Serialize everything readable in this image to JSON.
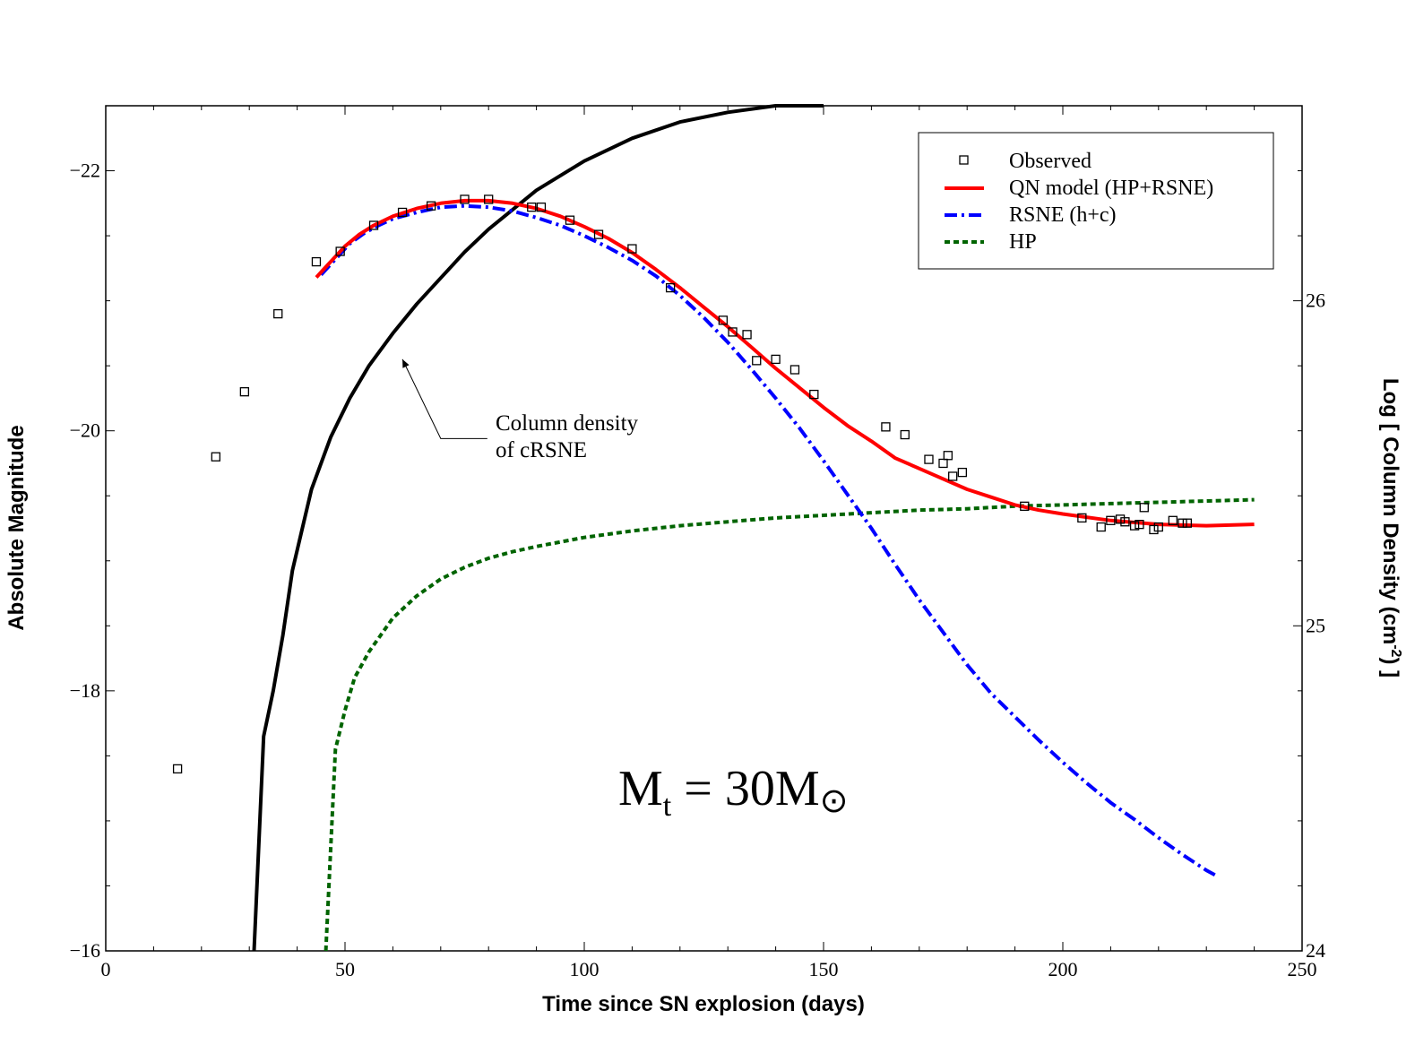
{
  "chart_data": {
    "type": "line",
    "xlabel": "Time since SN explosion (days)",
    "ylabel": "Absolute Magnitude",
    "y2label": "Log [ Column Density (cm",
    "y2label_sup": "-2",
    "y2label_end": ") ]",
    "xlim": [
      0,
      250
    ],
    "ylim": [
      -16,
      -22.5
    ],
    "y2lim": [
      24,
      26.6
    ],
    "x_ticks": [
      0,
      50,
      100,
      150,
      200,
      250
    ],
    "y_ticks": [
      -22,
      -20,
      -18,
      -16
    ],
    "y2_ticks": [
      24,
      25,
      26
    ],
    "y_inverted": true,
    "grid": false,
    "legend_position": "top-right",
    "annotation": {
      "line1": "Column density",
      "line2": "of cRSNE",
      "arrow_to": [
        62,
        -20.55
      ],
      "arrow_from": [
        70,
        -19.94
      ]
    },
    "mass_label": {
      "main": "M",
      "sub": "t",
      "mid": " = 30M",
      "symbol": "⊙"
    },
    "series": [
      {
        "name": "Observed",
        "kind": "scatter",
        "color": "#000000",
        "x": [
          15,
          23,
          29,
          36,
          44,
          49,
          56,
          62,
          68,
          75,
          80,
          89,
          91,
          97,
          103,
          110,
          118,
          129,
          131,
          134,
          136,
          140,
          144,
          148,
          163,
          167,
          172,
          175,
          176,
          177,
          179,
          192,
          204,
          208,
          210,
          212,
          213,
          215,
          216,
          217,
          219,
          220,
          223,
          225,
          226
        ],
        "y": [
          -17.4,
          -19.8,
          -20.3,
          -20.9,
          -21.3,
          -21.38,
          -21.58,
          -21.68,
          -21.73,
          -21.78,
          -21.78,
          -21.72,
          -21.72,
          -21.62,
          -21.51,
          -21.4,
          -21.1,
          -20.85,
          -20.76,
          -20.74,
          -20.54,
          -20.55,
          -20.47,
          -20.28,
          -20.03,
          -19.97,
          -19.78,
          -19.75,
          -19.81,
          -19.65,
          -19.68,
          -19.42,
          -19.33,
          -19.26,
          -19.31,
          -19.32,
          -19.3,
          -19.27,
          -19.28,
          -19.41,
          -19.24,
          -19.26,
          -19.31,
          -19.29,
          -19.29
        ]
      },
      {
        "name": "QN model (HP+RSNE)",
        "kind": "line",
        "color": "#ff0000",
        "dash": "solid",
        "x": [
          44,
          46,
          48,
          50,
          53,
          56,
          60,
          65,
          70,
          75,
          80,
          85,
          90,
          95,
          100,
          105,
          110,
          115,
          120,
          125,
          130,
          135,
          140,
          145,
          150,
          155,
          160,
          165,
          170,
          175,
          180,
          185,
          190,
          195,
          200,
          210,
          220,
          230,
          240
        ],
        "y": [
          -21.18,
          -21.26,
          -21.34,
          -21.42,
          -21.51,
          -21.58,
          -21.65,
          -21.71,
          -21.75,
          -21.77,
          -21.77,
          -21.75,
          -21.71,
          -21.65,
          -21.57,
          -21.48,
          -21.37,
          -21.24,
          -21.1,
          -20.95,
          -20.8,
          -20.64,
          -20.48,
          -20.33,
          -20.18,
          -20.04,
          -19.92,
          -19.79,
          -19.71,
          -19.63,
          -19.55,
          -19.49,
          -19.43,
          -19.39,
          -19.36,
          -19.31,
          -19.28,
          -19.27,
          -19.28
        ]
      },
      {
        "name": "RSNE (h+c)",
        "kind": "line",
        "color": "#0000ff",
        "dash": "dashdot",
        "x": [
          45,
          47,
          49,
          51,
          54,
          57,
          60,
          65,
          70,
          75,
          80,
          85,
          90,
          95,
          100,
          105,
          110,
          115,
          120,
          125,
          130,
          135,
          140,
          145,
          150,
          155,
          160,
          165,
          170,
          175,
          180,
          185,
          190,
          195,
          200,
          205,
          210,
          215,
          220,
          225,
          230,
          232
        ],
        "y": [
          -21.2,
          -21.28,
          -21.36,
          -21.44,
          -21.52,
          -21.58,
          -21.63,
          -21.68,
          -21.72,
          -21.73,
          -21.72,
          -21.69,
          -21.64,
          -21.58,
          -21.5,
          -21.41,
          -21.31,
          -21.19,
          -21.04,
          -20.87,
          -20.68,
          -20.47,
          -20.25,
          -20.02,
          -19.77,
          -19.51,
          -19.25,
          -18.97,
          -18.7,
          -18.45,
          -18.2,
          -17.98,
          -17.8,
          -17.62,
          -17.45,
          -17.29,
          -17.14,
          -17.01,
          -16.87,
          -16.74,
          -16.62,
          -16.58
        ]
      },
      {
        "name": "HP",
        "kind": "line",
        "color": "#006400",
        "dash": "dashed",
        "x": [
          46,
          48,
          50,
          52,
          55,
          60,
          65,
          70,
          75,
          80,
          85,
          90,
          100,
          110,
          120,
          130,
          140,
          150,
          160,
          170,
          180,
          190,
          200,
          210,
          220,
          230,
          240
        ],
        "y": [
          -16,
          -17.55,
          -17.85,
          -18.1,
          -18.3,
          -18.56,
          -18.73,
          -18.86,
          -18.95,
          -19.02,
          -19.07,
          -19.11,
          -19.18,
          -19.23,
          -19.27,
          -19.3,
          -19.33,
          -19.35,
          -19.37,
          -19.39,
          -19.4,
          -19.42,
          -19.43,
          -19.44,
          -19.45,
          -19.46,
          -19.47
        ]
      },
      {
        "name": "Column density of cRSNE",
        "kind": "line",
        "axis": "right",
        "color": "#000000",
        "dash": "solid",
        "x": [
          31,
          33,
          35,
          37,
          39,
          43,
          47,
          51,
          55,
          60,
          65,
          70,
          75,
          80,
          90,
          100,
          110,
          120,
          130,
          140,
          150
        ],
        "y": [
          24,
          24.66,
          24.8,
          24.97,
          25.17,
          25.42,
          25.58,
          25.7,
          25.8,
          25.9,
          25.99,
          26.07,
          26.15,
          26.22,
          26.34,
          26.43,
          26.5,
          26.55,
          26.58,
          26.6,
          26.6
        ]
      }
    ]
  }
}
